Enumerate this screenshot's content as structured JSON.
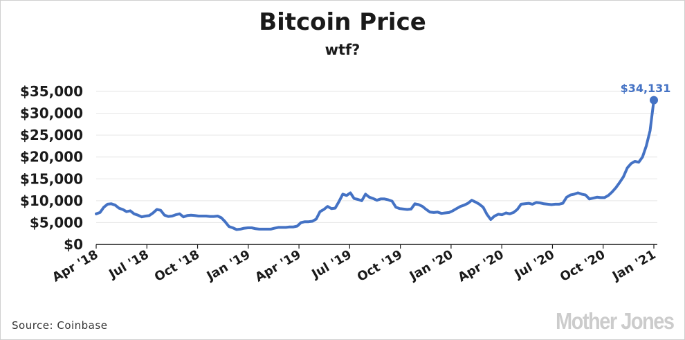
{
  "chart_data": {
    "type": "line",
    "title": "Bitcoin Price",
    "subtitle": "wtf?",
    "xlabel": "",
    "ylabel": "",
    "ylim": [
      0,
      35000
    ],
    "yticks": [
      "$0",
      "$5,000",
      "$10,000",
      "$15,000",
      "$20,000",
      "$25,000",
      "$30,000",
      "$35,000"
    ],
    "ytick_values": [
      0,
      5000,
      10000,
      15000,
      20000,
      25000,
      30000,
      35000
    ],
    "xticks": [
      "Apr '18",
      "Jul '18",
      "Oct '18",
      "Jan '19",
      "Apr '19",
      "Jul '19",
      "Oct '19",
      "Jan '20",
      "Apr '20",
      "Jul '20",
      "Oct '20",
      "Jan '21"
    ],
    "grid": true,
    "legend": "none",
    "series_color": "#4472c4",
    "annotation": {
      "label": "$34,131",
      "value": 33000
    },
    "series": [
      {
        "values": [
          7000,
          7300,
          8500,
          9200,
          9300,
          9000,
          8300,
          8000,
          7500,
          7700,
          7000,
          6700,
          6300,
          6500,
          6600,
          7200,
          8000,
          7800,
          6700,
          6400,
          6500,
          6800,
          7000,
          6300,
          6600,
          6700,
          6600,
          6500,
          6500,
          6500,
          6400,
          6400,
          6500,
          6100,
          5200,
          4100,
          3800,
          3400,
          3500,
          3700,
          3800,
          3800,
          3600,
          3500,
          3500,
          3500,
          3500,
          3700,
          3900,
          3900,
          3900,
          4000,
          4000,
          4200,
          5000,
          5200,
          5200,
          5300,
          5800,
          7500,
          8000,
          8700,
          8200,
          8300,
          9800,
          11500,
          11200,
          11800,
          10500,
          10300,
          10000,
          11500,
          10800,
          10500,
          10100,
          10400,
          10400,
          10200,
          9900,
          8500,
          8200,
          8100,
          8000,
          8100,
          9300,
          9100,
          8700,
          8000,
          7400,
          7300,
          7400,
          7100,
          7200,
          7300,
          7700,
          8200,
          8700,
          9000,
          9400,
          10100,
          9700,
          9200,
          8500,
          6900,
          5700,
          6500,
          6900,
          6800,
          7200,
          7000,
          7300,
          8000,
          9200,
          9300,
          9400,
          9200,
          9600,
          9500,
          9300,
          9200,
          9100,
          9200,
          9200,
          9400,
          10800,
          11300,
          11500,
          11800,
          11500,
          11300,
          10400,
          10600,
          10800,
          10700,
          10700,
          11200,
          12000,
          13000,
          14200,
          15500,
          17500,
          18500,
          19000,
          18800,
          20000,
          22500,
          26000,
          33000
        ]
      }
    ]
  },
  "footer": {
    "source": "Source:  Coinbase",
    "logo": "Mother Jones"
  }
}
